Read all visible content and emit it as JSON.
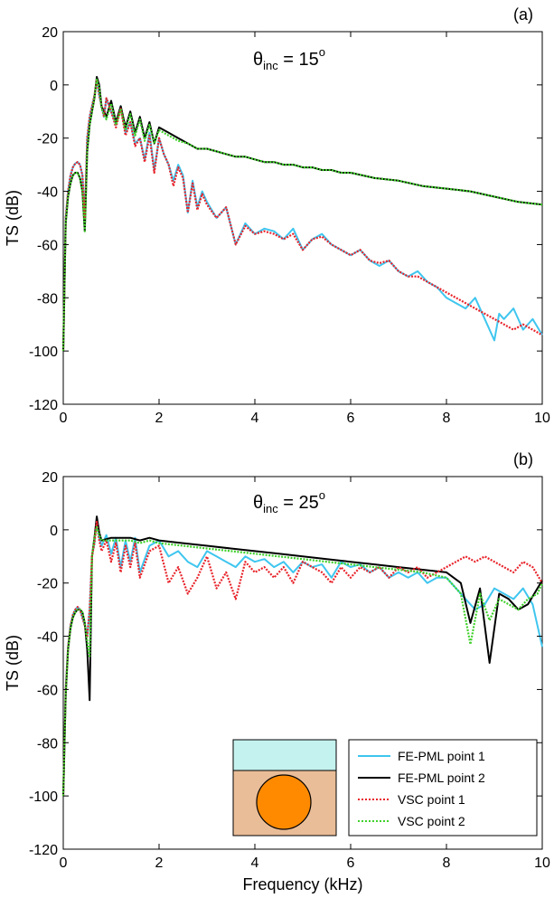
{
  "chart_data": [
    {
      "type": "line",
      "panel_label": "(a)",
      "annotation": {
        "symbol": "θ",
        "subscript": "inc",
        "text": " = 15",
        "superscript": "o"
      },
      "xlabel": "",
      "ylabel": "TS (dB)",
      "xlim": [
        0,
        10
      ],
      "ylim": [
        -120,
        20
      ],
      "xticks": [
        "0",
        "2",
        "4",
        "6",
        "8",
        "10"
      ],
      "yticks": [
        "20",
        "0",
        "-20",
        "-40",
        "-60",
        "-80",
        "-100",
        "-120"
      ],
      "grid": false,
      "series": [
        {
          "name": "FE-PML point 1",
          "color": "#3fc6ef",
          "dash": "solid",
          "x": [
            0.0,
            0.05,
            0.1,
            0.15,
            0.2,
            0.25,
            0.3,
            0.35,
            0.4,
            0.45,
            0.5,
            0.55,
            0.6,
            0.65,
            0.7,
            0.75,
            0.8,
            0.85,
            0.9,
            1.0,
            1.1,
            1.2,
            1.3,
            1.4,
            1.5,
            1.6,
            1.7,
            1.8,
            1.9,
            2.0,
            2.1,
            2.2,
            2.3,
            2.4,
            2.5,
            2.6,
            2.7,
            2.8,
            2.9,
            3.0,
            3.2,
            3.4,
            3.6,
            3.8,
            4.0,
            4.2,
            4.4,
            4.6,
            4.8,
            5.0,
            5.2,
            5.4,
            5.6,
            5.8,
            6.0,
            6.2,
            6.4,
            6.6,
            6.8,
            7.0,
            7.2,
            7.4,
            7.6,
            7.8,
            8.0,
            8.2,
            8.4,
            8.6,
            8.8,
            9.0,
            9.1,
            9.2,
            9.4,
            9.6,
            9.8,
            10.0
          ],
          "y": [
            -100,
            -50,
            -40,
            -34,
            -31,
            -29.5,
            -29,
            -30,
            -34,
            -50,
            -20,
            -12,
            -8,
            -4,
            2,
            -4,
            -8,
            -12,
            -5,
            -10,
            -15,
            -8,
            -18,
            -14,
            -22,
            -20,
            -28,
            -18,
            -32,
            -20,
            -26,
            -30,
            -36,
            -30,
            -34,
            -48,
            -36,
            -46,
            -40,
            -44,
            -50,
            -46,
            -60,
            -52,
            -56,
            -54,
            -55,
            -58,
            -54,
            -62,
            -58,
            -56,
            -60,
            -62,
            -64,
            -62,
            -66,
            -68,
            -66,
            -70,
            -72,
            -70,
            -74,
            -76,
            -80,
            -82,
            -84,
            -80,
            -88,
            -96,
            -86,
            -88,
            -84,
            -92,
            -88,
            -94
          ]
        },
        {
          "name": "FE-PML point 2",
          "color": "#000000",
          "dash": "solid",
          "x": [
            0.0,
            0.05,
            0.1,
            0.15,
            0.2,
            0.25,
            0.3,
            0.35,
            0.4,
            0.45,
            0.5,
            0.55,
            0.6,
            0.65,
            0.7,
            0.75,
            0.8,
            0.9,
            1.0,
            1.1,
            1.2,
            1.3,
            1.4,
            1.5,
            1.6,
            1.7,
            1.8,
            1.9,
            2.0,
            2.2,
            2.4,
            2.6,
            2.8,
            3.0,
            3.2,
            3.4,
            3.6,
            3.8,
            4.0,
            4.2,
            4.4,
            4.6,
            4.8,
            5.0,
            5.2,
            5.4,
            5.6,
            5.8,
            6.0,
            6.5,
            7.0,
            7.5,
            8.0,
            8.5,
            9.0,
            9.5,
            10.0
          ],
          "y": [
            -100,
            -52,
            -42,
            -37,
            -34,
            -33,
            -33,
            -35,
            -40,
            -55,
            -25,
            -15,
            -10,
            -5,
            3,
            0,
            -8,
            -12,
            -6,
            -14,
            -8,
            -16,
            -10,
            -18,
            -12,
            -20,
            -14,
            -22,
            -16,
            -18,
            -20,
            -22,
            -24,
            -24,
            -25,
            -26,
            -27,
            -27,
            -28,
            -29,
            -29,
            -30,
            -30,
            -31,
            -31,
            -32,
            -32,
            -33,
            -33,
            -35,
            -36,
            -38,
            -39,
            -40,
            -42,
            -44,
            -45
          ]
        },
        {
          "name": "VSC point 1",
          "color": "#e8232a",
          "dash": "dotted",
          "x": [
            0.0,
            0.05,
            0.1,
            0.15,
            0.2,
            0.25,
            0.3,
            0.35,
            0.4,
            0.45,
            0.5,
            0.55,
            0.6,
            0.65,
            0.7,
            0.75,
            0.8,
            0.85,
            0.9,
            1.0,
            1.1,
            1.2,
            1.3,
            1.4,
            1.5,
            1.6,
            1.7,
            1.8,
            1.9,
            2.0,
            2.1,
            2.2,
            2.3,
            2.4,
            2.5,
            2.6,
            2.7,
            2.8,
            2.9,
            3.0,
            3.2,
            3.4,
            3.6,
            3.8,
            4.0,
            4.2,
            4.4,
            4.6,
            4.8,
            5.0,
            5.2,
            5.4,
            5.6,
            5.8,
            6.0,
            6.2,
            6.4,
            6.6,
            6.8,
            7.0,
            7.2,
            7.4,
            7.6,
            7.8,
            8.0,
            8.2,
            8.4,
            8.6,
            8.8,
            9.0,
            9.2,
            9.4,
            9.6,
            9.8,
            10.0
          ],
          "y": [
            -100,
            -50,
            -40,
            -34,
            -31,
            -29.5,
            -29,
            -30,
            -34,
            -50,
            -20,
            -12,
            -8,
            -4,
            2,
            -4,
            -8,
            -12,
            -5,
            -10,
            -16,
            -9,
            -19,
            -14,
            -23,
            -20,
            -29,
            -19,
            -33,
            -20,
            -26,
            -30,
            -38,
            -31,
            -35,
            -48,
            -37,
            -47,
            -41,
            -45,
            -50,
            -46,
            -60,
            -53,
            -56,
            -55,
            -56,
            -58,
            -56,
            -62,
            -58,
            -57,
            -60,
            -62,
            -64,
            -62,
            -66,
            -67,
            -66,
            -70,
            -72,
            -72,
            -74,
            -76,
            -78,
            -80,
            -82,
            -84,
            -86,
            -88,
            -90,
            -92,
            -90,
            -92,
            -94
          ]
        },
        {
          "name": "VSC point 2",
          "color": "#3fd12a",
          "dash": "dotted",
          "x": [
            0.0,
            0.05,
            0.1,
            0.15,
            0.2,
            0.25,
            0.3,
            0.35,
            0.4,
            0.45,
            0.5,
            0.55,
            0.6,
            0.65,
            0.7,
            0.75,
            0.8,
            0.9,
            1.0,
            1.1,
            1.2,
            1.3,
            1.4,
            1.5,
            1.6,
            1.7,
            1.8,
            1.9,
            2.0,
            2.2,
            2.4,
            2.6,
            2.8,
            3.0,
            3.2,
            3.4,
            3.6,
            3.8,
            4.0,
            4.2,
            4.4,
            4.6,
            4.8,
            5.0,
            5.2,
            5.4,
            5.6,
            5.8,
            6.0,
            6.5,
            7.0,
            7.5,
            8.0,
            8.5,
            9.0,
            9.5,
            10.0
          ],
          "y": [
            -100,
            -52,
            -42,
            -37,
            -34,
            -33,
            -33,
            -35,
            -40,
            -55,
            -25,
            -15,
            -10,
            -5,
            2,
            -1,
            -9,
            -13,
            -7,
            -15,
            -9,
            -17,
            -11,
            -19,
            -13,
            -21,
            -15,
            -22,
            -17,
            -19,
            -21,
            -22,
            -24,
            -24,
            -25,
            -26,
            -27,
            -27,
            -28,
            -29,
            -29,
            -30,
            -30,
            -31,
            -31,
            -32,
            -32,
            -33,
            -33,
            -35,
            -36,
            -38,
            -39,
            -40,
            -42,
            -44,
            -45
          ]
        }
      ]
    },
    {
      "type": "line",
      "panel_label": "(b)",
      "annotation": {
        "symbol": "θ",
        "subscript": "inc",
        "text": " = 25",
        "superscript": "o"
      },
      "xlabel": "Frequency (kHz)",
      "ylabel": "TS (dB)",
      "xlim": [
        0,
        10
      ],
      "ylim": [
        -120,
        20
      ],
      "xticks": [
        "0",
        "2",
        "4",
        "6",
        "8",
        "10"
      ],
      "yticks": [
        "20",
        "0",
        "-20",
        "-40",
        "-60",
        "-80",
        "-100",
        "-120"
      ],
      "grid": false,
      "legend": {
        "placement": "bottom-right",
        "entries": [
          "FE-PML point 1",
          "FE-PML point 2",
          "VSC point 1",
          "VSC point 2"
        ]
      },
      "series": [
        {
          "name": "FE-PML point 1",
          "color": "#3fc6ef",
          "dash": "solid",
          "x": [
            0.0,
            0.05,
            0.1,
            0.15,
            0.2,
            0.25,
            0.3,
            0.35,
            0.4,
            0.45,
            0.5,
            0.55,
            0.6,
            0.65,
            0.7,
            0.75,
            0.8,
            0.9,
            1.0,
            1.1,
            1.2,
            1.3,
            1.4,
            1.5,
            1.6,
            1.8,
            2.0,
            2.2,
            2.4,
            2.6,
            2.8,
            3.0,
            3.2,
            3.4,
            3.6,
            3.8,
            4.0,
            4.2,
            4.4,
            4.6,
            4.8,
            5.0,
            5.2,
            5.4,
            5.6,
            5.8,
            6.0,
            6.2,
            6.4,
            6.6,
            6.8,
            7.0,
            7.2,
            7.4,
            7.6,
            7.8,
            8.0,
            8.2,
            8.4,
            8.6,
            8.8,
            9.0,
            9.2,
            9.4,
            9.6,
            9.8,
            10.0
          ],
          "y": [
            -100,
            -60,
            -44,
            -36,
            -32,
            -30,
            -29,
            -30,
            -33,
            -36,
            -40,
            -30,
            -10,
            -5,
            4,
            -3,
            -6,
            -2,
            -9,
            -3,
            -14,
            -4,
            -12,
            -3,
            -16,
            -6,
            -4,
            -10,
            -8,
            -12,
            -14,
            -8,
            -10,
            -12,
            -14,
            -10,
            -12,
            -11,
            -14,
            -12,
            -16,
            -12,
            -14,
            -13,
            -18,
            -12,
            -14,
            -13,
            -16,
            -14,
            -18,
            -16,
            -18,
            -16,
            -20,
            -18,
            -18,
            -22,
            -26,
            -30,
            -28,
            -22,
            -24,
            -26,
            -22,
            -28,
            -44
          ]
        },
        {
          "name": "FE-PML point 2",
          "color": "#000000",
          "dash": "solid",
          "x": [
            0.0,
            0.05,
            0.1,
            0.15,
            0.2,
            0.25,
            0.3,
            0.35,
            0.4,
            0.45,
            0.5,
            0.55,
            0.6,
            0.65,
            0.7,
            0.75,
            0.8,
            1.0,
            1.2,
            1.4,
            1.6,
            1.8,
            2.0,
            2.5,
            3.0,
            3.5,
            4.0,
            4.5,
            5.0,
            5.5,
            6.0,
            6.5,
            7.0,
            7.5,
            8.0,
            8.3,
            8.5,
            8.7,
            8.9,
            9.1,
            9.3,
            9.5,
            9.7,
            9.9,
            10.0
          ],
          "y": [
            -100,
            -62,
            -45,
            -37,
            -33,
            -31,
            -30,
            -30,
            -31,
            -35,
            -45,
            -64,
            -10,
            -3,
            5,
            -1,
            -4,
            -3,
            -3,
            -3,
            -4,
            -3,
            -4,
            -5,
            -6,
            -7,
            -8,
            -9,
            -10,
            -11,
            -12,
            -13,
            -14,
            -15,
            -16,
            -20,
            -35,
            -22,
            -50,
            -24,
            -26,
            -30,
            -28,
            -22,
            -19
          ]
        },
        {
          "name": "VSC point 1",
          "color": "#e8232a",
          "dash": "dotted",
          "x": [
            0.0,
            0.05,
            0.1,
            0.15,
            0.2,
            0.25,
            0.3,
            0.35,
            0.4,
            0.45,
            0.5,
            0.55,
            0.6,
            0.65,
            0.7,
            0.75,
            0.8,
            0.9,
            1.0,
            1.1,
            1.2,
            1.3,
            1.4,
            1.5,
            1.6,
            1.8,
            2.0,
            2.2,
            2.4,
            2.6,
            2.8,
            3.0,
            3.2,
            3.4,
            3.6,
            3.8,
            4.0,
            4.2,
            4.4,
            4.6,
            4.8,
            5.0,
            5.2,
            5.4,
            5.6,
            5.8,
            6.0,
            6.2,
            6.4,
            6.6,
            6.8,
            7.0,
            7.2,
            7.4,
            7.6,
            7.8,
            8.0,
            8.2,
            8.4,
            8.6,
            8.8,
            9.0,
            9.2,
            9.4,
            9.6,
            9.8,
            10.0
          ],
          "y": [
            -100,
            -60,
            -44,
            -36,
            -32,
            -30,
            -29,
            -30,
            -33,
            -36,
            -40,
            -30,
            -10,
            -5,
            3,
            -4,
            -8,
            -4,
            -12,
            -5,
            -16,
            -6,
            -14,
            -5,
            -18,
            -8,
            -6,
            -20,
            -14,
            -24,
            -18,
            -10,
            -22,
            -16,
            -26,
            -12,
            -16,
            -14,
            -18,
            -14,
            -20,
            -12,
            -14,
            -16,
            -20,
            -14,
            -18,
            -14,
            -16,
            -14,
            -18,
            -14,
            -16,
            -14,
            -18,
            -16,
            -14,
            -12,
            -10,
            -12,
            -10,
            -12,
            -14,
            -16,
            -12,
            -14,
            -20
          ]
        },
        {
          "name": "VSC point 2",
          "color": "#3fd12a",
          "dash": "dotted",
          "x": [
            0.0,
            0.05,
            0.1,
            0.15,
            0.2,
            0.25,
            0.3,
            0.35,
            0.4,
            0.45,
            0.5,
            0.55,
            0.6,
            0.65,
            0.7,
            0.75,
            0.8,
            1.0,
            1.2,
            1.4,
            1.6,
            1.8,
            2.0,
            2.5,
            3.0,
            3.5,
            4.0,
            4.5,
            5.0,
            5.5,
            6.0,
            6.5,
            7.0,
            7.5,
            8.0,
            8.3,
            8.5,
            8.7,
            8.9,
            9.1,
            9.3,
            9.5,
            9.7,
            9.9,
            10.0
          ],
          "y": [
            -100,
            -62,
            -45,
            -37,
            -33,
            -31,
            -30,
            -30,
            -31,
            -35,
            -42,
            -48,
            -10,
            -3,
            1,
            -2,
            -4,
            -4,
            -4,
            -4,
            -5,
            -4,
            -5,
            -6,
            -7,
            -8,
            -9,
            -10,
            -11,
            -12,
            -13,
            -14,
            -15,
            -16,
            -18,
            -24,
            -43,
            -24,
            -34,
            -26,
            -28,
            -30,
            -26,
            -24,
            -20
          ]
        }
      ]
    }
  ],
  "legend_labels": [
    "FE-PML point 1",
    "FE-PML point 2",
    "VSC point 1",
    "VSC point 2"
  ],
  "colors": {
    "fe_pml_1": "#3fc6ef",
    "fe_pml_2": "#000000",
    "vsc_1": "#e8232a",
    "vsc_2": "#3fd12a",
    "fluid": "#c4f2ee",
    "sediment": "#e9bd98",
    "scatterer": "#ff8a00"
  }
}
